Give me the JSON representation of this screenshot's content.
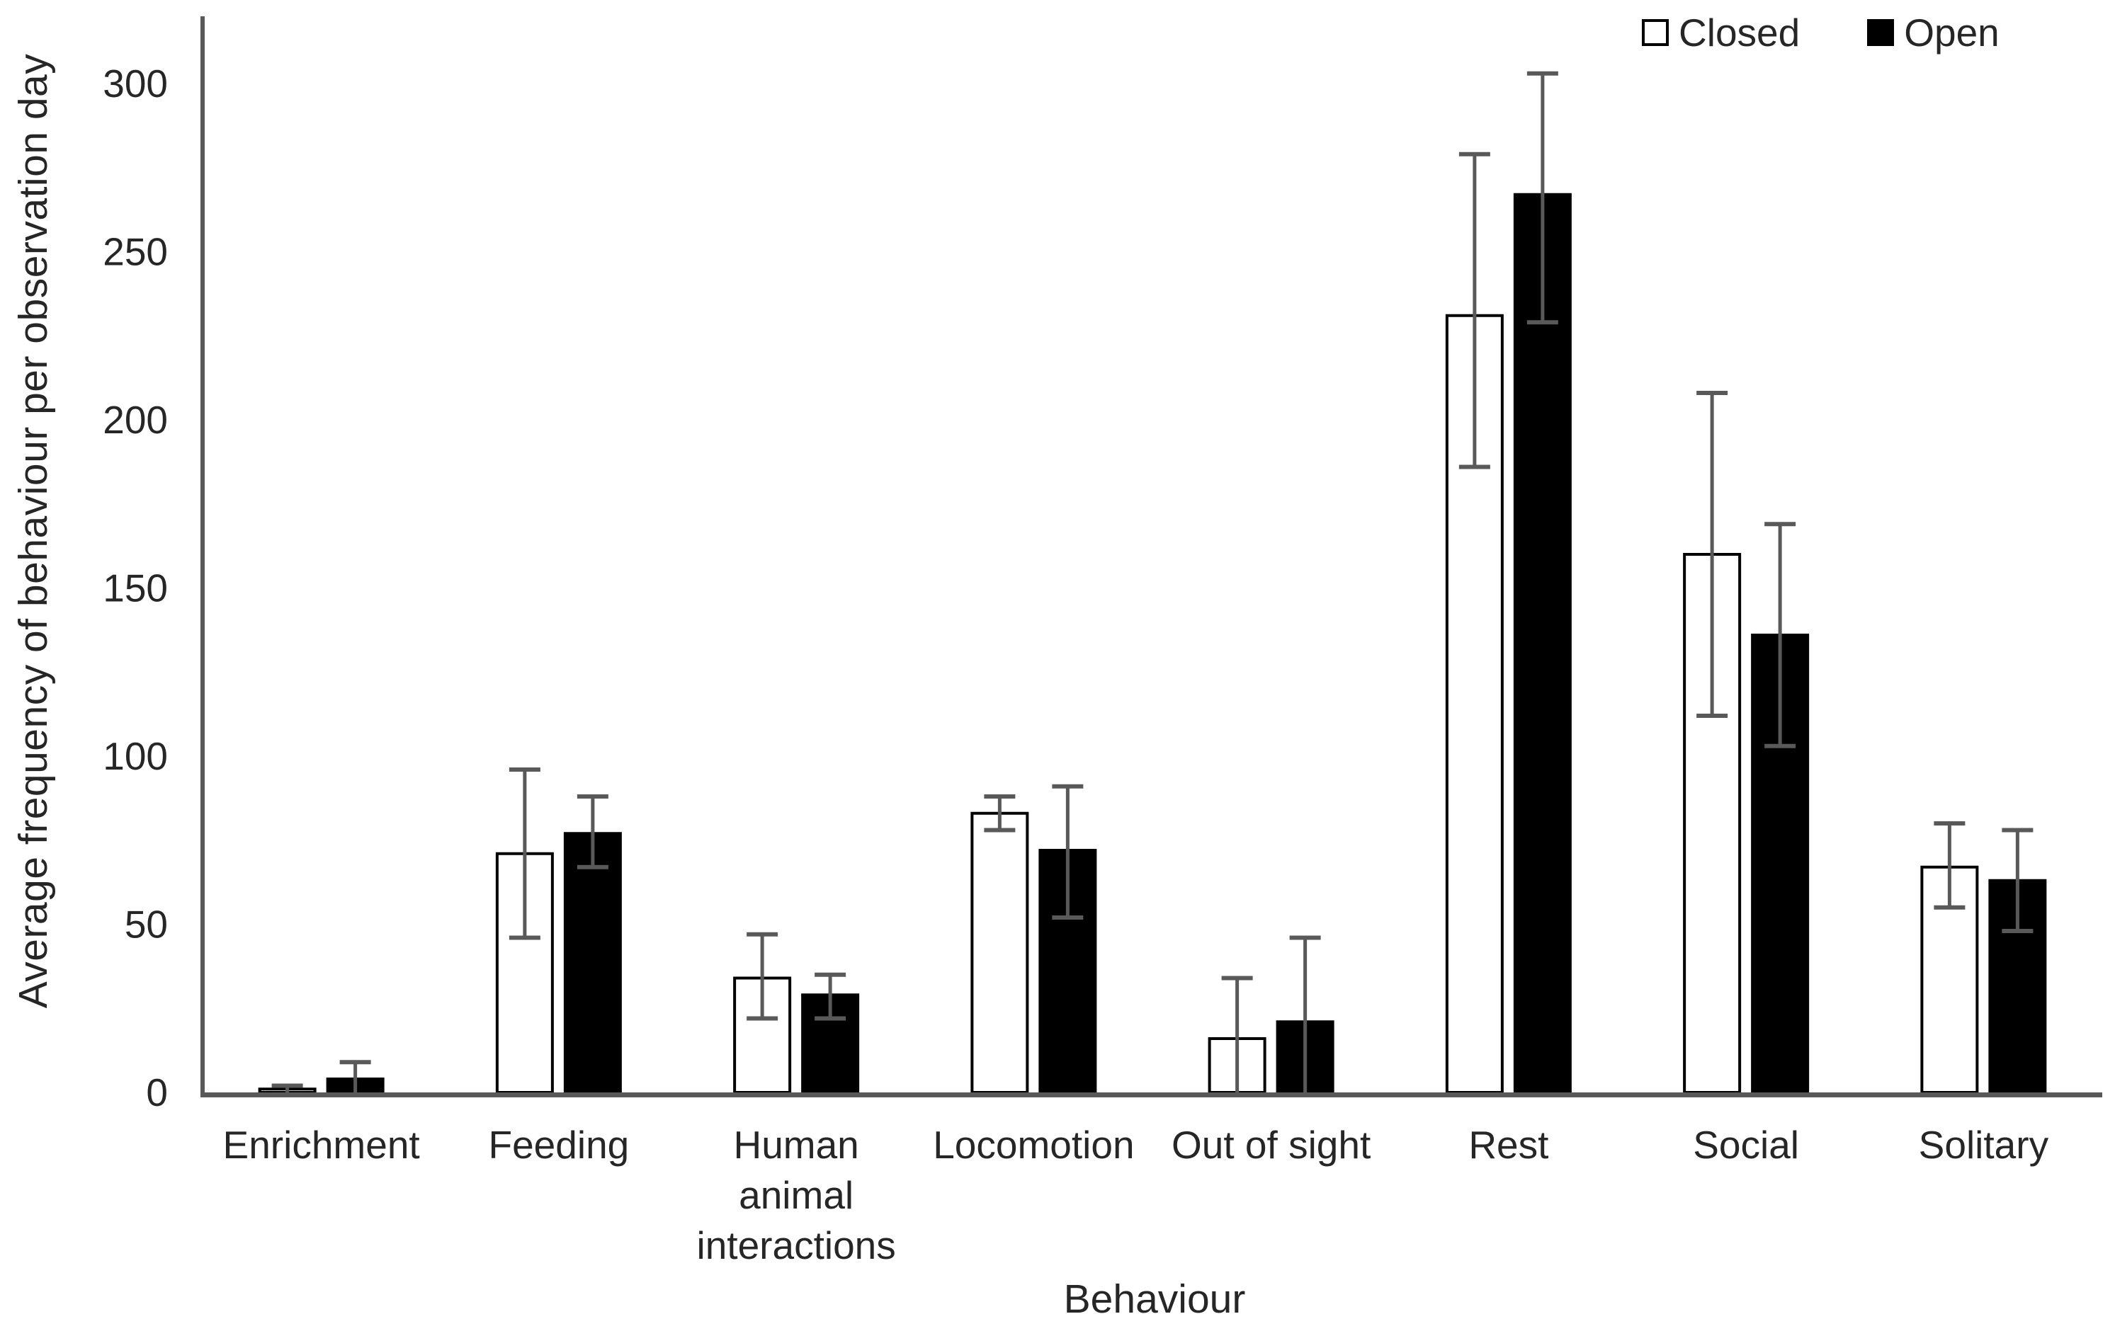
{
  "chart_data": {
    "type": "bar",
    "title": "",
    "xlabel": "Behaviour",
    "ylabel": "Average frequency of behaviour per observation day",
    "categories": [
      "Enrichment",
      "Feeding",
      "Human animal interactions",
      "Locomotion",
      "Out of sight",
      "Rest",
      "Social",
      "Solitary"
    ],
    "series": [
      {
        "name": "Closed",
        "fill": "#ffffff",
        "stroke": "#000000",
        "values": [
          1,
          71,
          34,
          83,
          16,
          231,
          160,
          67
        ],
        "err_up": [
          1,
          25,
          13,
          5,
          18,
          48,
          48,
          13
        ],
        "err_down": [
          1,
          25,
          12,
          5,
          16,
          45,
          48,
          12
        ]
      },
      {
        "name": "Open",
        "fill": "#000000",
        "stroke": "#000000",
        "values": [
          4,
          77,
          29,
          72,
          21,
          267,
          136,
          63
        ],
        "err_up": [
          5,
          11,
          6,
          19,
          25,
          36,
          33,
          15
        ],
        "err_down": [
          4,
          10,
          7,
          20,
          21,
          38,
          33,
          15
        ]
      }
    ],
    "ylim": [
      0,
      300
    ],
    "ytick_step": 50,
    "yticks": [
      "0",
      "50",
      "100",
      "150",
      "200",
      "250",
      "300"
    ],
    "grid": false,
    "legend_position": "top-right",
    "colors": {
      "axis": "#595959",
      "error_bar": "#595959",
      "text": "#262626",
      "background": "#ffffff"
    }
  }
}
